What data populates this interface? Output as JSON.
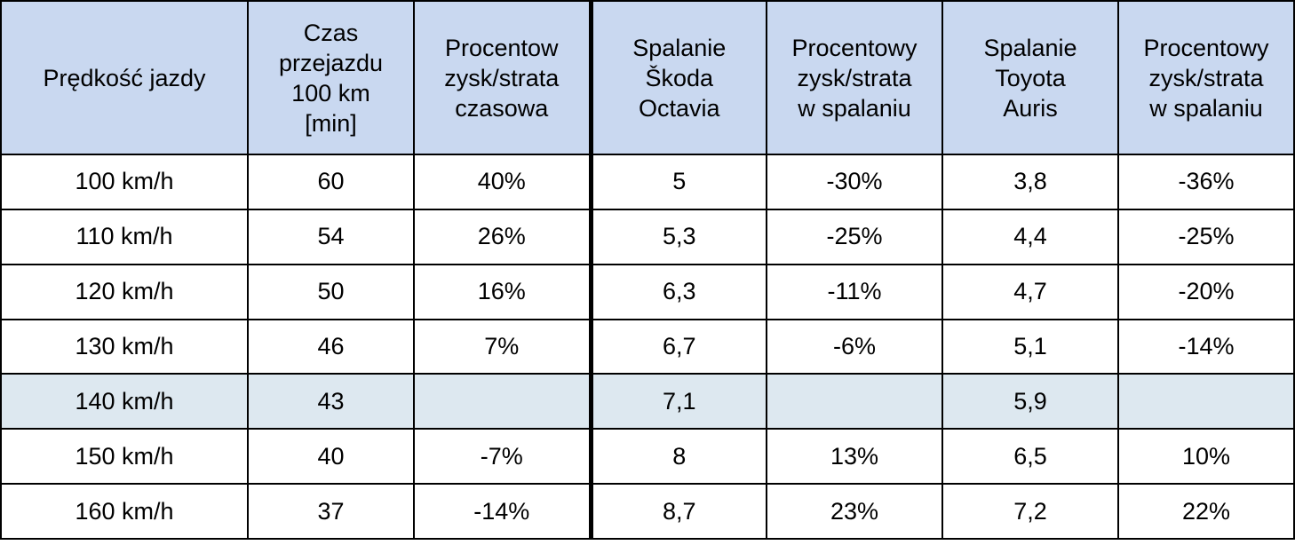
{
  "columns": [
    {
      "lines": [
        "Prędkość jazdy"
      ]
    },
    {
      "lines": [
        "Czas",
        "przejazdu",
        "100 km",
        "[min]"
      ]
    },
    {
      "lines": [
        "Procentow",
        "zysk/strata",
        "czasowa"
      ]
    },
    {
      "lines": [
        "Spalanie",
        "Škoda",
        "Octavia"
      ]
    },
    {
      "lines": [
        "Procentowy",
        "zysk/strata",
        "w spalaniu"
      ]
    },
    {
      "lines": [
        "Spalanie",
        "Toyota",
        "Auris"
      ]
    },
    {
      "lines": [
        "Procentowy",
        "zysk/strata",
        "w spalaniu"
      ]
    }
  ],
  "rows": [
    {
      "cells": [
        "100 km/h",
        "60",
        "40%",
        "5",
        "-30%",
        "3,8",
        "-36%"
      ],
      "highlighted": false
    },
    {
      "cells": [
        "110 km/h",
        "54",
        "26%",
        "5,3",
        "-25%",
        "4,4",
        "-25%"
      ],
      "highlighted": false
    },
    {
      "cells": [
        "120 km/h",
        "50",
        "16%",
        "6,3",
        "-11%",
        "4,7",
        "-20%"
      ],
      "highlighted": false
    },
    {
      "cells": [
        "130 km/h",
        "46",
        "7%",
        "6,7",
        "-6%",
        "5,1",
        "-14%"
      ],
      "highlighted": false
    },
    {
      "cells": [
        "140 km/h",
        "43",
        "",
        "7,1",
        "",
        "5,9",
        ""
      ],
      "highlighted": true
    },
    {
      "cells": [
        "150 km/h",
        "40",
        "-7%",
        "8",
        "13%",
        "6,5",
        "10%"
      ],
      "highlighted": false
    },
    {
      "cells": [
        "160 km/h",
        "37",
        "-14%",
        "8,7",
        "23%",
        "7,2",
        "22%"
      ],
      "highlighted": false
    }
  ],
  "colors": {
    "header_bg": "#c9d8f0",
    "highlight_row_bg": "#dde8f0",
    "border": "#000000"
  }
}
